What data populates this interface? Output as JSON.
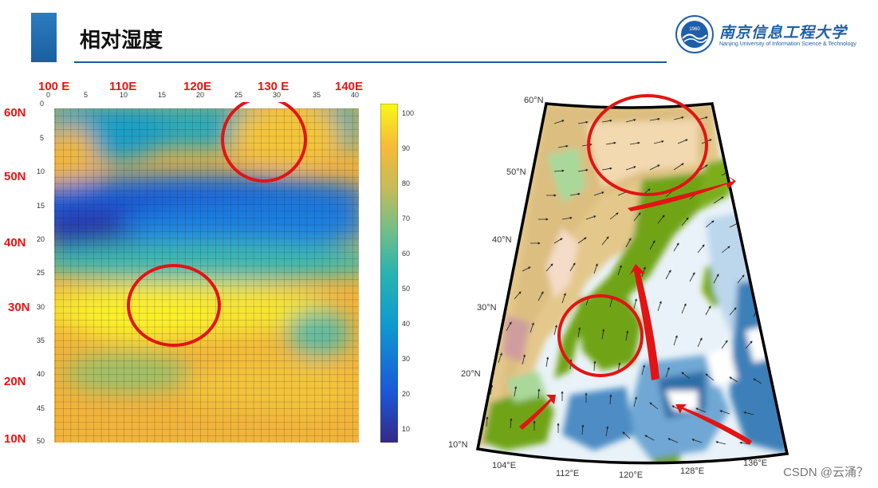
{
  "slide": {
    "title": "相对湿度"
  },
  "logo": {
    "name_cn": "南京信息工程大学",
    "name_en": "Nanjing University of Information Science & Technology",
    "year": "1960"
  },
  "left_panel": {
    "lon_labels": [
      "100 E",
      "110E",
      "120E",
      "130 E",
      "140E"
    ],
    "lat_labels": [
      "60N",
      "50N",
      "40N",
      "30N",
      "20N",
      "10N"
    ],
    "x_ticks": [
      "0",
      "5",
      "10",
      "15",
      "20",
      "25",
      "30",
      "35",
      "40"
    ],
    "y_ticks": [
      "0",
      "5",
      "10",
      "15",
      "20",
      "25",
      "30",
      "35",
      "40",
      "45",
      "50"
    ],
    "colorbar_ticks": [
      "100",
      "90",
      "80",
      "70",
      "60",
      "50",
      "40",
      "30",
      "20",
      "10"
    ]
  },
  "right_panel": {
    "lat_labels": [
      "60°N",
      "50°N",
      "40°N",
      "30°N",
      "20°N",
      "10°N"
    ],
    "lon_labels": [
      "104°E",
      "112°E",
      "120°E",
      "128°E",
      "136°E"
    ]
  },
  "watermark": "CSDN @云涌？"
}
